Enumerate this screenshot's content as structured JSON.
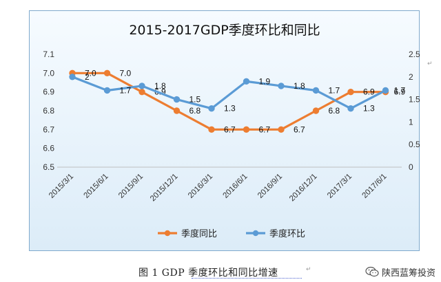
{
  "chart_data": {
    "type": "line",
    "title": "2015-2017GDP季度环比和同比",
    "categories": [
      "2015/3/1",
      "2015/6/1",
      "2015/9/1",
      "2015/12/1",
      "2016/3/1",
      "2016/6/1",
      "2016/9/1",
      "2016/12/1",
      "2017/3/1",
      "2017/6/1"
    ],
    "y_left": {
      "ylim": [
        6.5,
        7.1
      ],
      "ticks": [
        "6.5",
        "6.6",
        "6.7",
        "6.8",
        "6.9",
        "7.0",
        "7.1"
      ]
    },
    "y_right": {
      "ylim": [
        0,
        2.5
      ],
      "ticks": [
        "0",
        "0.5",
        "1",
        "1.5",
        "2",
        "2.5"
      ]
    },
    "grid": false,
    "legend_position": "bottom",
    "series": [
      {
        "name": "季度同比",
        "axis": "left",
        "color": "#ed7d31",
        "values": [
          7.0,
          7.0,
          6.9,
          6.8,
          6.7,
          6.7,
          6.7,
          6.8,
          6.9,
          6.9
        ],
        "labels": [
          "7.0",
          "7.0",
          "6.9",
          "6.8",
          "6.7",
          "6.7",
          "6.7",
          "6.8",
          "6.9",
          "6.9"
        ]
      },
      {
        "name": "季度环比",
        "axis": "right",
        "color": "#5b9bd5",
        "values": [
          2.0,
          1.7,
          1.8,
          1.5,
          1.3,
          1.9,
          1.8,
          1.7,
          1.3,
          1.7
        ],
        "labels": [
          "2",
          "1.7",
          "1.8",
          "1.5",
          "1.3",
          "1.9",
          "1.8",
          "1.7",
          "1.3",
          "1.7"
        ]
      }
    ]
  },
  "caption": "图 1 GDP 季度环比和同比增速",
  "watermark": "陕西蓝筹投资"
}
